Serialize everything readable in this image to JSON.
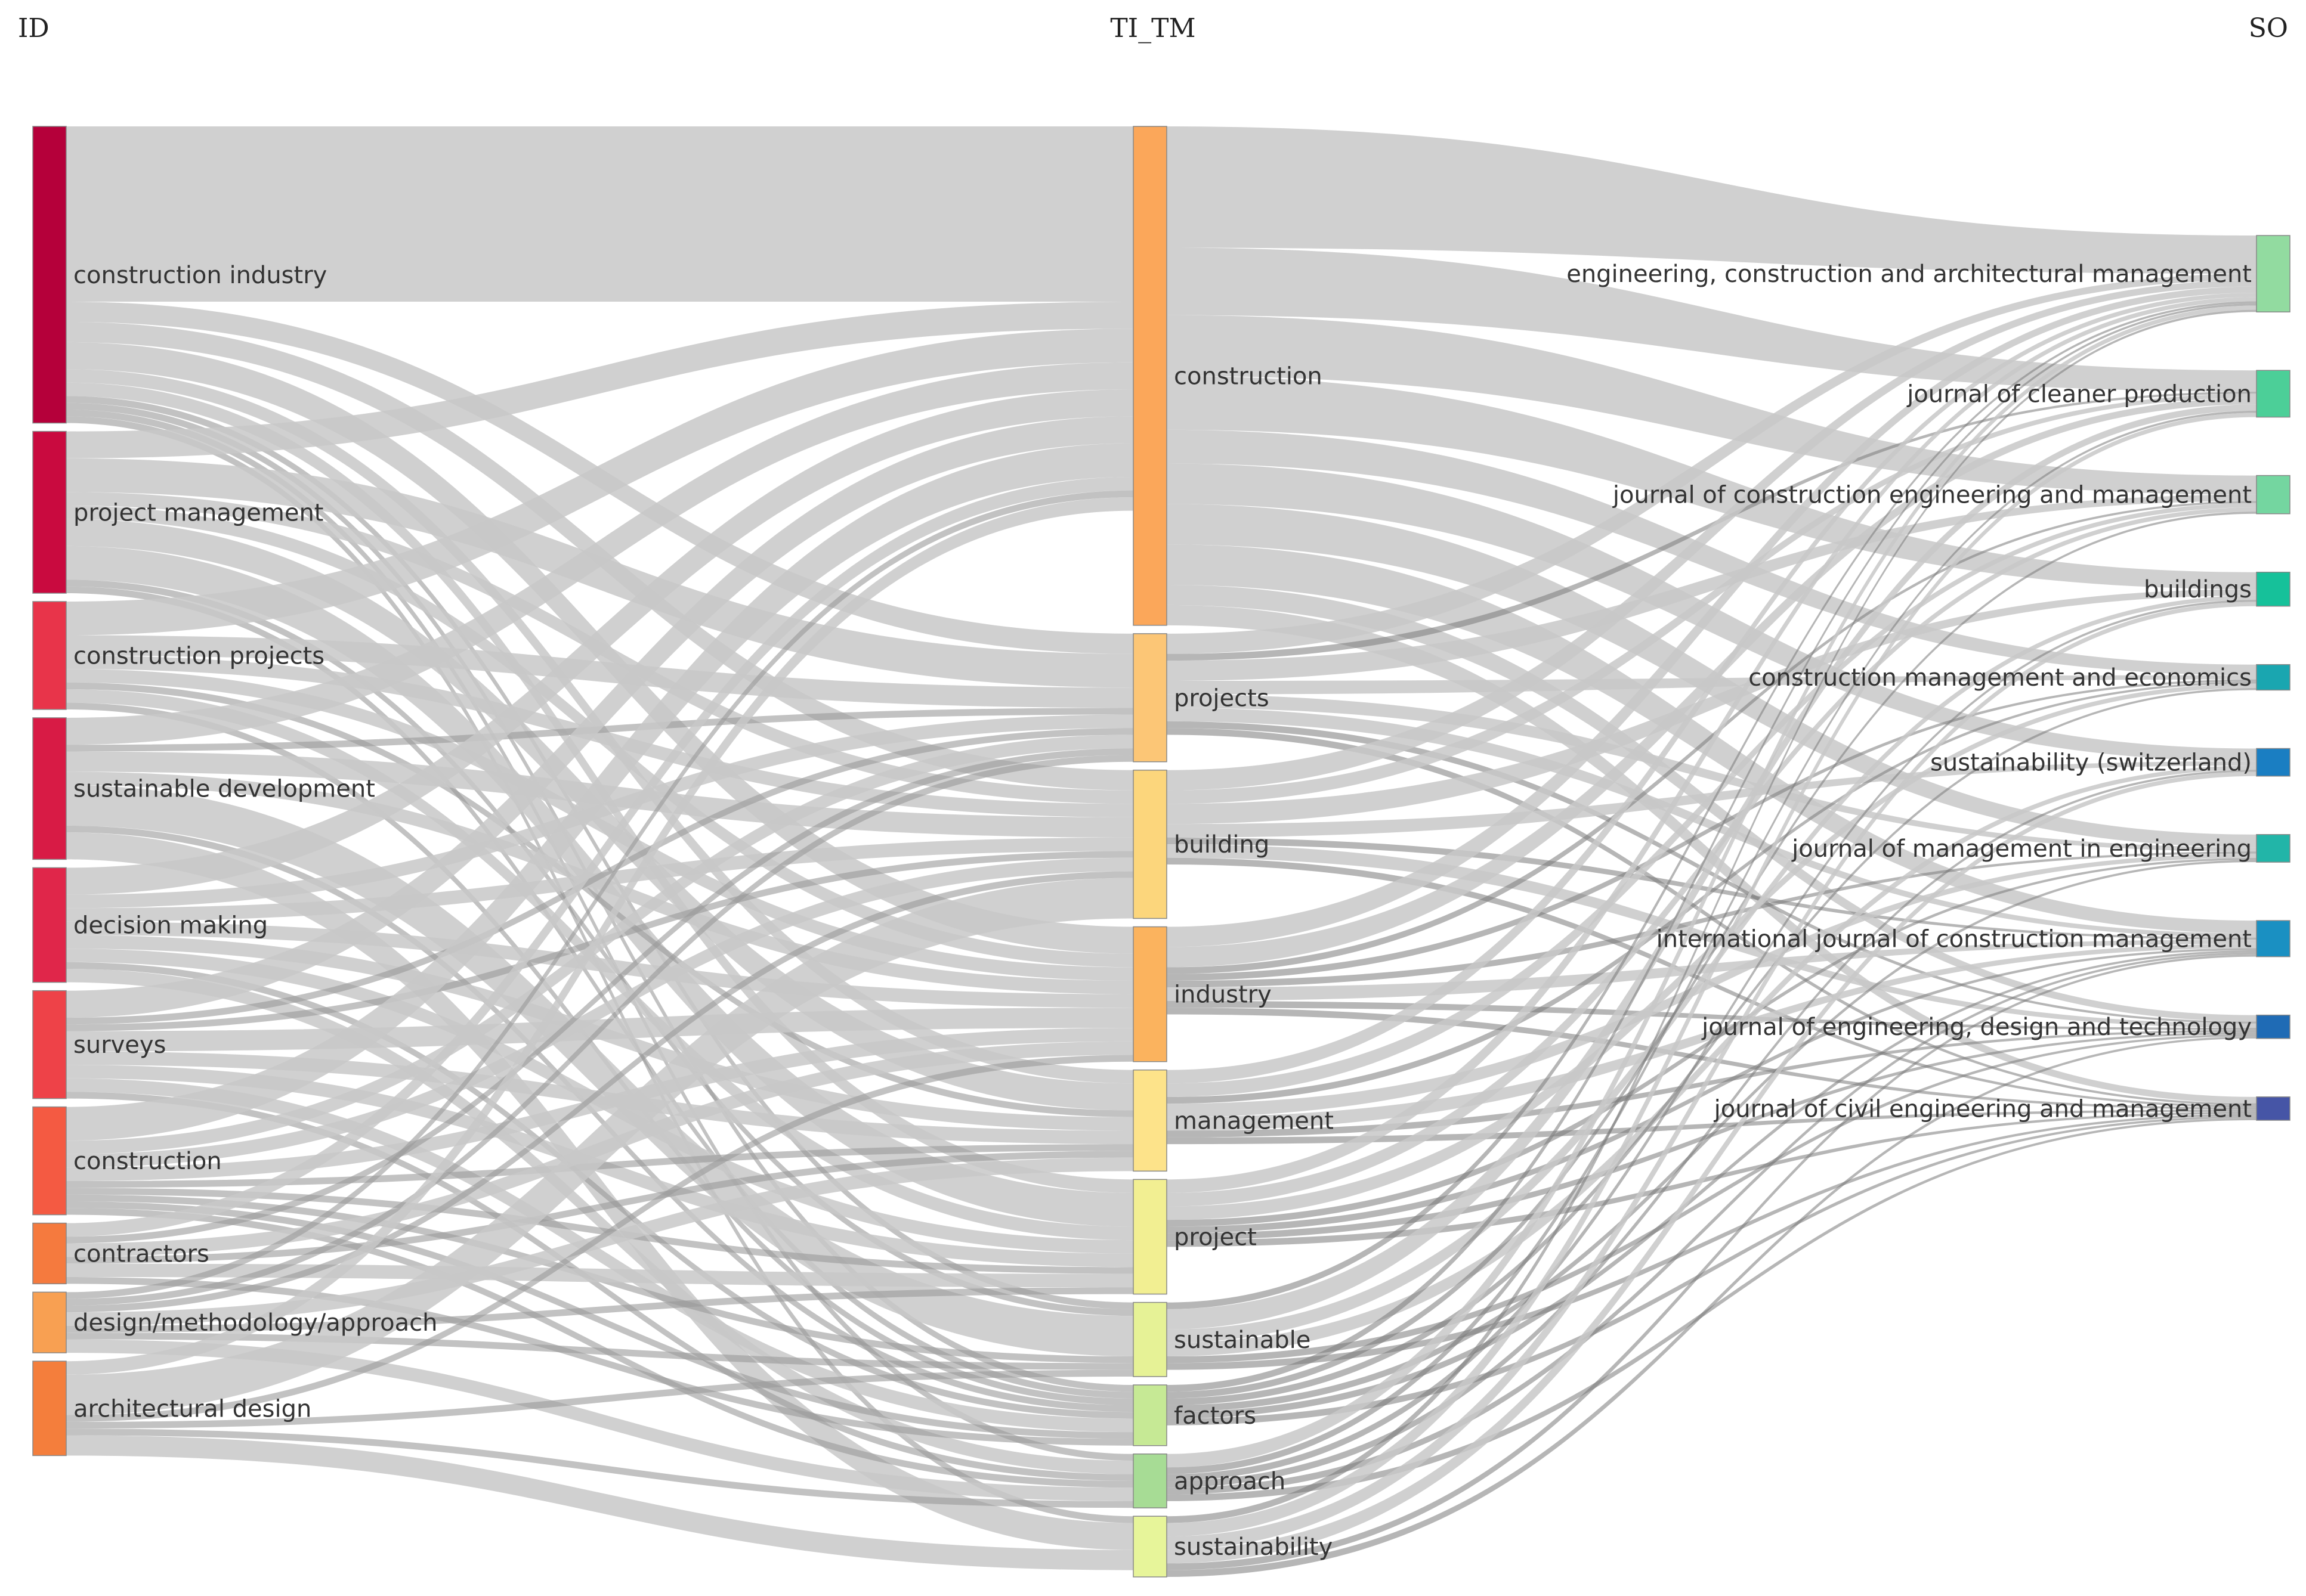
{
  "chart_data": {
    "type": "sankey",
    "columns": [
      {
        "key": "ID",
        "label": "ID"
      },
      {
        "key": "TI_TM",
        "label": "TI_TM"
      },
      {
        "key": "SO",
        "label": "SO"
      }
    ],
    "nodes": {
      "ID": [
        {
          "label": "construction industry",
          "color": "#b5003a"
        },
        {
          "label": "project management",
          "color": "#c90a3f"
        },
        {
          "label": "construction projects",
          "color": "#e8344a"
        },
        {
          "label": "sustainable development",
          "color": "#d81b45"
        },
        {
          "label": "decision making",
          "color": "#e0264a"
        },
        {
          "label": "surveys",
          "color": "#ee4248"
        },
        {
          "label": "construction",
          "color": "#f45a42"
        },
        {
          "label": "contractors",
          "color": "#f57a3e"
        },
        {
          "label": "design/methodology/approach",
          "color": "#f8a052"
        },
        {
          "label": "architectural design",
          "color": "#f47e3c"
        }
      ],
      "TI_TM": [
        {
          "label": "construction",
          "color": "#fba75a"
        },
        {
          "label": "projects",
          "color": "#fcc676"
        },
        {
          "label": "building",
          "color": "#fcd67c"
        },
        {
          "label": "industry",
          "color": "#fbb35e"
        },
        {
          "label": "management",
          "color": "#fde38a"
        },
        {
          "label": "project",
          "color": "#f2ef92"
        },
        {
          "label": "sustainable",
          "color": "#e6f296"
        },
        {
          "label": "factors",
          "color": "#c6e995"
        },
        {
          "label": "approach",
          "color": "#a7dc95"
        },
        {
          "label": "sustainability",
          "color": "#e7f59a"
        }
      ],
      "SO": [
        {
          "label": "engineering, construction and architectural management",
          "color": "#92dba0"
        },
        {
          "label": "journal of cleaner production",
          "color": "#4ccf98"
        },
        {
          "label": "journal of construction engineering and management",
          "color": "#74d6a0"
        },
        {
          "label": "buildings",
          "color": "#16c19a"
        },
        {
          "label": "construction management and economics",
          "color": "#1aa6b0"
        },
        {
          "label": "sustainability (switzerland)",
          "color": "#1a7ec2"
        },
        {
          "label": "journal of management in engineering",
          "color": "#22b5a8"
        },
        {
          "label": "international journal of construction management",
          "color": "#1a90c2"
        },
        {
          "label": "journal of engineering, design and technology",
          "color": "#1f6bb5"
        },
        {
          "label": "journal of civil engineering and management",
          "color": "#4655a6"
        }
      ]
    },
    "links_left": [
      [
        0,
        0,
        26
      ],
      [
        0,
        1,
        3
      ],
      [
        0,
        2,
        3
      ],
      [
        0,
        3,
        4
      ],
      [
        0,
        4,
        2
      ],
      [
        0,
        5,
        2
      ],
      [
        0,
        6,
        1
      ],
      [
        0,
        7,
        1
      ],
      [
        0,
        8,
        1
      ],
      [
        0,
        9,
        1
      ],
      [
        1,
        0,
        4
      ],
      [
        1,
        1,
        5
      ],
      [
        1,
        2,
        2
      ],
      [
        1,
        3,
        2
      ],
      [
        1,
        4,
        4
      ],
      [
        1,
        5,
        5
      ],
      [
        1,
        6,
        1
      ],
      [
        1,
        7,
        1
      ],
      [
        2,
        0,
        5
      ],
      [
        2,
        1,
        3
      ],
      [
        2,
        2,
        2
      ],
      [
        2,
        3,
        2
      ],
      [
        2,
        4,
        1
      ],
      [
        2,
        5,
        2
      ],
      [
        2,
        7,
        1
      ],
      [
        3,
        0,
        4
      ],
      [
        3,
        1,
        1
      ],
      [
        3,
        2,
        3
      ],
      [
        3,
        3,
        2
      ],
      [
        3,
        6,
        6
      ],
      [
        3,
        7,
        1
      ],
      [
        3,
        9,
        4
      ],
      [
        4,
        0,
        4
      ],
      [
        4,
        1,
        2
      ],
      [
        4,
        2,
        2
      ],
      [
        4,
        3,
        2
      ],
      [
        4,
        4,
        2
      ],
      [
        4,
        5,
        2
      ],
      [
        4,
        7,
        1
      ],
      [
        4,
        8,
        2
      ],
      [
        5,
        0,
        4
      ],
      [
        5,
        1,
        1
      ],
      [
        5,
        2,
        1
      ],
      [
        5,
        3,
        3
      ],
      [
        5,
        4,
        2
      ],
      [
        5,
        5,
        2
      ],
      [
        5,
        7,
        2
      ],
      [
        5,
        8,
        1
      ],
      [
        6,
        0,
        5
      ],
      [
        6,
        1,
        2
      ],
      [
        6,
        2,
        2
      ],
      [
        6,
        3,
        2
      ],
      [
        6,
        4,
        1
      ],
      [
        6,
        5,
        1
      ],
      [
        6,
        6,
        1
      ],
      [
        6,
        7,
        1
      ],
      [
        6,
        8,
        1
      ],
      [
        7,
        0,
        2
      ],
      [
        7,
        1,
        1
      ],
      [
        7,
        3,
        2
      ],
      [
        7,
        4,
        1
      ],
      [
        7,
        5,
        2
      ],
      [
        7,
        7,
        1
      ],
      [
        8,
        0,
        1
      ],
      [
        8,
        1,
        1
      ],
      [
        8,
        2,
        1
      ],
      [
        8,
        4,
        2
      ],
      [
        8,
        5,
        1
      ],
      [
        8,
        6,
        1
      ],
      [
        8,
        8,
        2
      ],
      [
        9,
        0,
        2
      ],
      [
        9,
        2,
        6
      ],
      [
        9,
        3,
        1
      ],
      [
        9,
        6,
        1
      ],
      [
        9,
        8,
        1
      ],
      [
        9,
        9,
        3
      ]
    ],
    "links_right": [
      [
        0,
        0,
        18
      ],
      [
        0,
        1,
        10
      ],
      [
        0,
        2,
        9
      ],
      [
        0,
        3,
        8
      ],
      [
        0,
        4,
        5
      ],
      [
        0,
        5,
        6
      ],
      [
        0,
        6,
        6
      ],
      [
        0,
        7,
        6
      ],
      [
        0,
        8,
        3
      ],
      [
        0,
        9,
        3
      ],
      [
        1,
        0,
        3
      ],
      [
        1,
        1,
        1
      ],
      [
        1,
        2,
        3
      ],
      [
        1,
        4,
        2
      ],
      [
        1,
        6,
        2
      ],
      [
        1,
        7,
        2
      ],
      [
        1,
        8,
        1
      ],
      [
        1,
        9,
        1
      ],
      [
        2,
        0,
        3
      ],
      [
        2,
        1,
        2
      ],
      [
        2,
        3,
        3
      ],
      [
        2,
        5,
        2
      ],
      [
        2,
        7,
        1
      ],
      [
        2,
        8,
        2
      ],
      [
        2,
        9,
        1
      ],
      [
        3,
        0,
        3
      ],
      [
        3,
        1,
        3
      ],
      [
        3,
        2,
        1
      ],
      [
        3,
        4,
        1
      ],
      [
        3,
        6,
        1
      ],
      [
        3,
        7,
        2
      ],
      [
        3,
        8,
        1
      ],
      [
        3,
        9,
        1
      ],
      [
        4,
        0,
        2
      ],
      [
        4,
        2,
        2
      ],
      [
        4,
        4,
        1
      ],
      [
        4,
        6,
        2
      ],
      [
        4,
        7,
        2
      ],
      [
        4,
        8,
        1
      ],
      [
        4,
        9,
        1
      ],
      [
        5,
        0,
        2
      ],
      [
        5,
        2,
        2
      ],
      [
        5,
        4,
        2
      ],
      [
        5,
        6,
        1
      ],
      [
        5,
        7,
        1
      ],
      [
        5,
        8,
        1
      ],
      [
        5,
        9,
        1
      ],
      [
        6,
        0,
        1
      ],
      [
        6,
        1,
        3
      ],
      [
        6,
        3,
        2
      ],
      [
        6,
        5,
        2
      ],
      [
        6,
        8,
        1
      ],
      [
        6,
        9,
        1
      ],
      [
        7,
        0,
        1
      ],
      [
        7,
        2,
        1
      ],
      [
        7,
        4,
        1
      ],
      [
        7,
        6,
        1
      ],
      [
        7,
        7,
        1
      ],
      [
        7,
        9,
        1
      ],
      [
        8,
        0,
        2
      ],
      [
        8,
        1,
        1
      ],
      [
        8,
        3,
        1
      ],
      [
        8,
        5,
        1
      ],
      [
        8,
        7,
        1
      ],
      [
        8,
        9,
        1
      ],
      [
        9,
        0,
        1
      ],
      [
        9,
        1,
        2
      ],
      [
        9,
        3,
        2
      ],
      [
        9,
        5,
        2
      ],
      [
        9,
        7,
        1
      ],
      [
        9,
        8,
        1
      ]
    ]
  }
}
